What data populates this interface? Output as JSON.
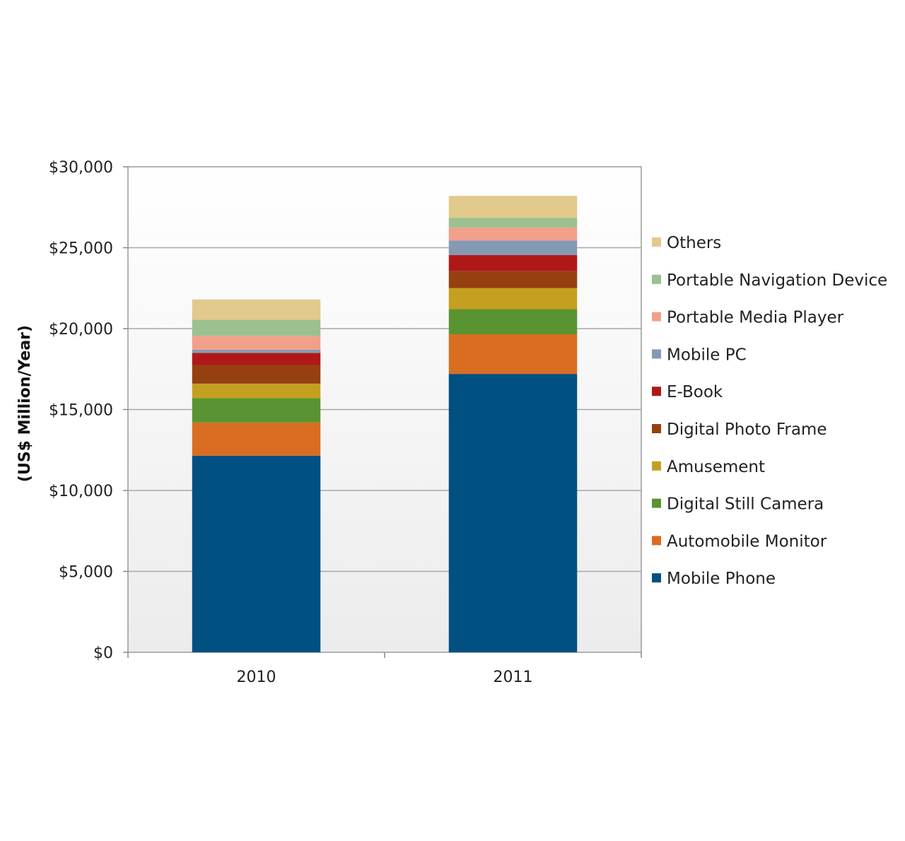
{
  "chart_data": {
    "type": "bar",
    "stacked": true,
    "title": "",
    "xlabel": "",
    "ylabel": "(US$ Million/Year)",
    "categories": [
      "2010",
      "2011"
    ],
    "ylim": [
      0,
      30000
    ],
    "yticks": [
      {
        "value": 0,
        "label": "$0"
      },
      {
        "value": 5000,
        "label": "$5,000"
      },
      {
        "value": 10000,
        "label": "$10,000"
      },
      {
        "value": 15000,
        "label": "$15,000"
      },
      {
        "value": 20000,
        "label": "$20,000"
      },
      {
        "value": 25000,
        "label": "$25,000"
      },
      {
        "value": 30000,
        "label": "$30,000"
      }
    ],
    "grid": true,
    "legend_position": "right",
    "series": [
      {
        "name": "Mobile Phone",
        "color": "#005082",
        "values": [
          12150,
          17200
        ]
      },
      {
        "name": "Automobile Monitor",
        "color": "#d96d22",
        "values": [
          2050,
          2450
        ]
      },
      {
        "name": "Digital Still Camera",
        "color": "#5a9432",
        "values": [
          1500,
          1550
        ]
      },
      {
        "name": "Amusement",
        "color": "#c4a020",
        "values": [
          900,
          1300
        ]
      },
      {
        "name": "Digital Photo Frame",
        "color": "#964010",
        "values": [
          1150,
          1050
        ]
      },
      {
        "name": "E-Book",
        "color": "#b01818",
        "values": [
          750,
          1000
        ]
      },
      {
        "name": "Mobile PC",
        "color": "#8499b4",
        "values": [
          200,
          900
        ]
      },
      {
        "name": "Portable Media Player",
        "color": "#f2a08a",
        "values": [
          850,
          800
        ]
      },
      {
        "name": "Portable Navigation Device",
        "color": "#9cc090",
        "values": [
          1000,
          600
        ]
      },
      {
        "name": "Others",
        "color": "#e2c98c",
        "values": [
          1250,
          1350
        ]
      }
    ]
  }
}
